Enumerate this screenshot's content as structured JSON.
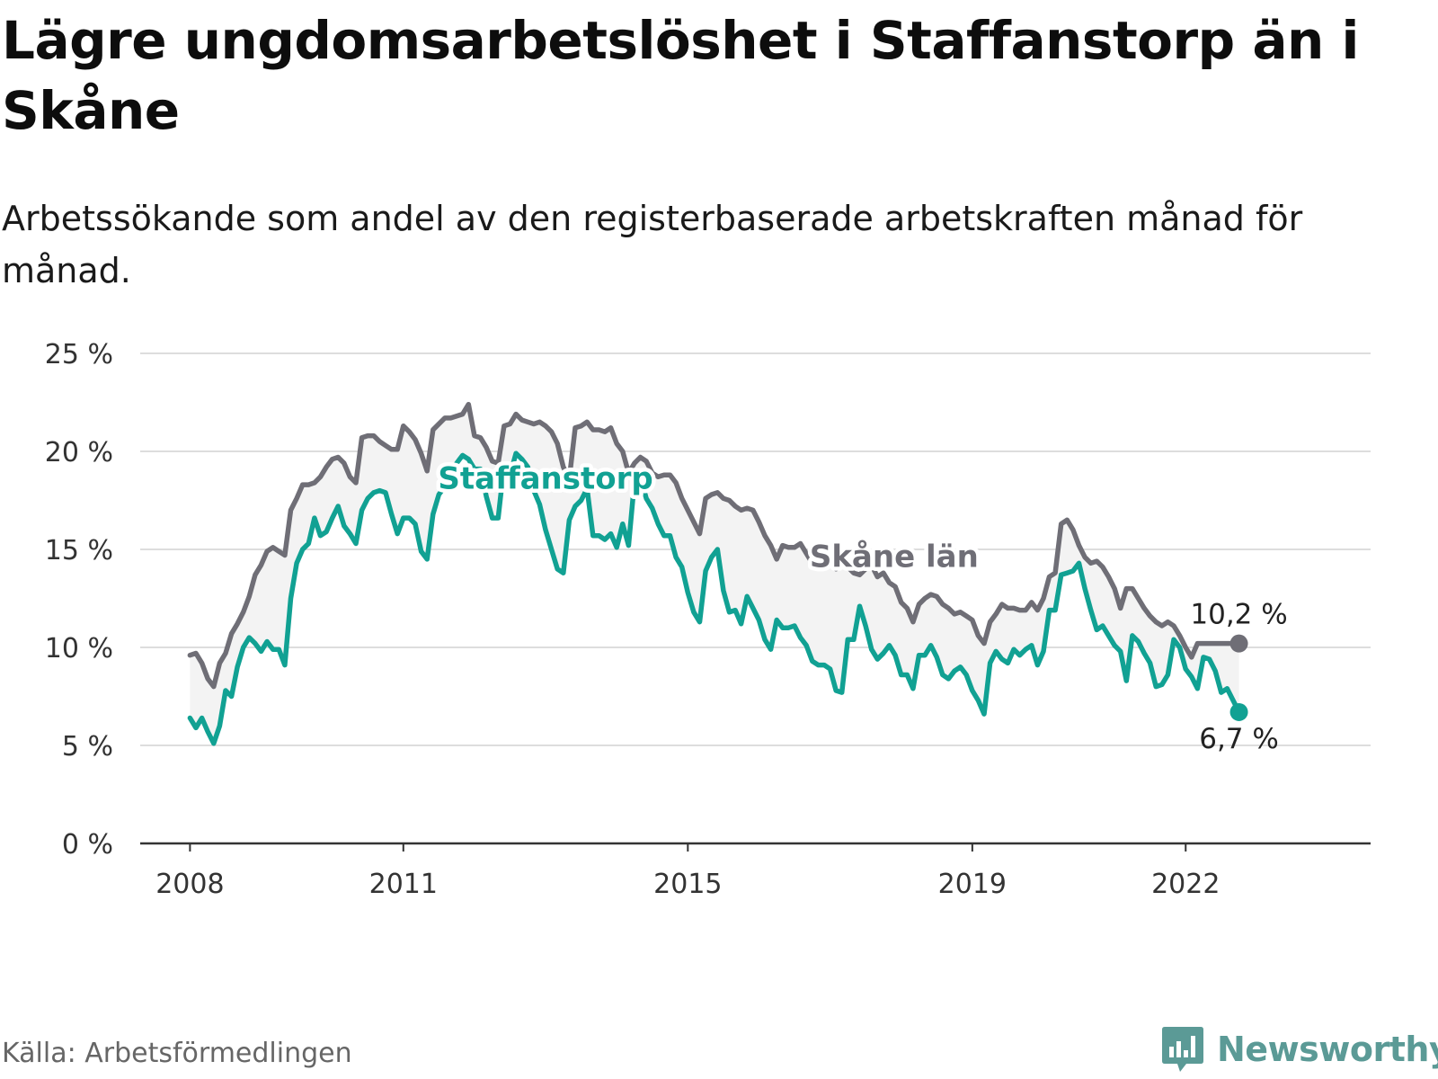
{
  "title": "Lägre ungdomsarbetslöshet i Staffanstorp än i Skåne",
  "subtitle": "Arbetssökande som andel av den registerbaserade arbetskraften månad för månad.",
  "source": "Källa: Arbetsförmedlingen",
  "brand": "Newsworthy",
  "colors": {
    "staffanstorp": "#11a193",
    "skane": "#6f6e76",
    "grid": "#dddddd",
    "band": "#f3f3f3",
    "brand": "#5b9a96"
  },
  "icons": {
    "logo": "newsworthy-logo-icon"
  },
  "chart_data": {
    "type": "line",
    "x_start": 2008.0,
    "x_step": 0.08333,
    "xlim": [
      2007.3,
      2024.6
    ],
    "ylim": [
      0,
      25
    ],
    "y_ticks": [
      0,
      5,
      10,
      15,
      20,
      25
    ],
    "y_tick_labels": [
      "0 %",
      "5 %",
      "10 %",
      "15 %",
      "20 %",
      "25 %"
    ],
    "x_ticks": [
      2008,
      2011,
      2015,
      2019,
      2022
    ],
    "x_tick_labels": [
      "2008",
      "2011",
      "2015",
      "2019",
      "2022"
    ],
    "series": [
      {
        "name": "Staffanstorp",
        "end_label": "6,7 %",
        "values": [
          6.4,
          5.9,
          6.4,
          5.7,
          5.1,
          6.0,
          7.8,
          7.5,
          9.0,
          10.0,
          10.5,
          10.2,
          9.8,
          10.3,
          9.9,
          9.9,
          9.1,
          12.5,
          14.3,
          15.0,
          15.3,
          16.6,
          15.7,
          15.9,
          16.6,
          17.2,
          16.2,
          15.8,
          15.3,
          17.0,
          17.6,
          17.9,
          18.0,
          17.9,
          16.8,
          15.8,
          16.6,
          16.6,
          16.3,
          14.9,
          14.5,
          16.8,
          17.8,
          18.2,
          18.7,
          19.4,
          19.8,
          19.6,
          19.1,
          19.1,
          17.7,
          16.6,
          16.6,
          19.3,
          18.8,
          19.9,
          19.6,
          19.2,
          18.0,
          17.3,
          16.0,
          15.0,
          14.0,
          13.8,
          16.5,
          17.2,
          17.5,
          18.1,
          15.7,
          15.7,
          15.5,
          15.8,
          15.1,
          16.3,
          15.2,
          18.5,
          18.7,
          17.6,
          17.1,
          16.3,
          15.7,
          15.7,
          14.6,
          14.1,
          12.8,
          11.8,
          11.3,
          13.9,
          14.6,
          15.0,
          12.9,
          11.8,
          11.9,
          11.2,
          12.6,
          12.0,
          11.4,
          10.4,
          9.9,
          11.4,
          11.0,
          11.0,
          11.1,
          10.5,
          10.1,
          9.3,
          9.1,
          9.1,
          8.9,
          7.8,
          7.7,
          10.4,
          10.4,
          12.1,
          11.1,
          9.9,
          9.4,
          9.7,
          10.1,
          9.6,
          8.6,
          8.6,
          7.9,
          9.6,
          9.6,
          10.1,
          9.5,
          8.6,
          8.4,
          8.8,
          9.0,
          8.6,
          7.8,
          7.3,
          6.6,
          9.2,
          9.8,
          9.4,
          9.2,
          9.9,
          9.6,
          9.9,
          10.1,
          9.1,
          9.8,
          11.9,
          11.9,
          13.7,
          13.8,
          13.9,
          14.3,
          13.0,
          11.9,
          10.9,
          11.1,
          10.6,
          10.1,
          9.8,
          8.3,
          10.6,
          10.3,
          9.7,
          9.2,
          8.0,
          8.1,
          8.6,
          10.4,
          10.0,
          8.9,
          8.5,
          7.9,
          9.5,
          9.4,
          8.8,
          7.7,
          7.9,
          7.3,
          6.7
        ]
      },
      {
        "name": "Skåne län",
        "end_label": "10,2 %",
        "values": [
          9.6,
          9.7,
          9.2,
          8.4,
          8.0,
          9.2,
          9.7,
          10.7,
          11.2,
          11.8,
          12.6,
          13.7,
          14.2,
          14.9,
          15.1,
          14.9,
          14.7,
          17.0,
          17.6,
          18.3,
          18.3,
          18.4,
          18.7,
          19.2,
          19.6,
          19.7,
          19.4,
          18.7,
          18.4,
          20.7,
          20.8,
          20.8,
          20.5,
          20.3,
          20.1,
          20.1,
          21.3,
          21.0,
          20.6,
          19.9,
          19.0,
          21.1,
          21.4,
          21.7,
          21.7,
          21.8,
          21.9,
          22.4,
          20.8,
          20.7,
          20.2,
          19.5,
          19.4,
          21.3,
          21.4,
          21.9,
          21.6,
          21.5,
          21.4,
          21.5,
          21.3,
          21.0,
          20.4,
          19.2,
          18.6,
          21.2,
          21.3,
          21.5,
          21.1,
          21.1,
          21.0,
          21.2,
          20.4,
          20.0,
          18.9,
          19.4,
          19.7,
          19.5,
          18.9,
          18.7,
          18.8,
          18.8,
          18.4,
          17.6,
          17.0,
          16.4,
          15.8,
          17.6,
          17.8,
          17.9,
          17.6,
          17.5,
          17.2,
          17.0,
          17.1,
          17.0,
          16.4,
          15.7,
          15.2,
          14.5,
          15.2,
          15.1,
          15.1,
          15.3,
          14.8,
          14.3,
          14.8,
          14.8,
          14.8,
          14.0,
          14.4,
          14.1,
          13.8,
          13.7,
          14.0,
          14.2,
          13.6,
          13.8,
          13.3,
          13.1,
          12.3,
          12.0,
          11.3,
          12.2,
          12.5,
          12.7,
          12.6,
          12.2,
          12.0,
          11.7,
          11.8,
          11.6,
          11.4,
          10.6,
          10.2,
          11.3,
          11.7,
          12.2,
          12.0,
          12.0,
          11.9,
          11.9,
          12.3,
          11.9,
          12.5,
          13.6,
          13.8,
          16.3,
          16.5,
          16.0,
          15.2,
          14.6,
          14.3,
          14.4,
          14.1,
          13.6,
          13.0,
          12.0,
          13.0,
          13.0,
          12.5,
          12.0,
          11.6,
          11.3,
          11.1,
          11.3,
          11.1,
          10.6,
          10.0,
          9.5,
          10.2,
          10.2,
          10.2,
          10.2,
          10.2,
          10.2,
          10.2,
          10.2
        ]
      }
    ],
    "annotations": [
      {
        "text": "Staffanstorp",
        "series": "Staffanstorp",
        "x": 2013.0,
        "y": 18.1
      },
      {
        "text": "Skåne län",
        "series": "Skåne län",
        "x": 2017.9,
        "y": 14.1
      }
    ]
  }
}
